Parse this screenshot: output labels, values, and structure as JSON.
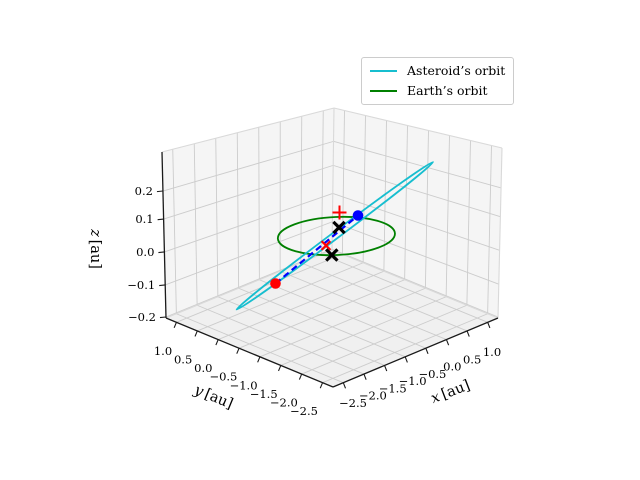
{
  "figure": {
    "background": "#ffffff"
  },
  "chart_data": {
    "type": "line",
    "projection": "3d",
    "title": "",
    "legend": {
      "position": "upper right",
      "entries": [
        {
          "label": "Asteroid’s orbit",
          "color": "#17becf",
          "style": "solid"
        },
        {
          "label": "Earth’s orbit",
          "color": "#008000",
          "style": "solid"
        }
      ]
    },
    "axes": {
      "x": {
        "var": "x",
        "unit": "[au]",
        "ticks": [
          "−2.5",
          "−2.0",
          "−1.5",
          "−1.0",
          "−0.5",
          "0.0",
          "0.5",
          "1.0"
        ],
        "range_au": [
          -2.75,
          1.25
        ]
      },
      "y": {
        "var": "y",
        "unit": "[au]",
        "ticks": [
          "1.0",
          "0.5",
          "0.0",
          "−0.5",
          "−1.0",
          "−1.5",
          "−2.0",
          "−2.5"
        ],
        "range_au": [
          1.25,
          -2.75
        ]
      },
      "z": {
        "var": "z",
        "unit": "[au]",
        "ticks": [
          "0.2",
          "0.1",
          "0.0",
          "−0.1",
          "−0.2"
        ],
        "range_au": [
          -0.2,
          0.2
        ]
      }
    },
    "series": [
      {
        "name": "Asteroid’s orbit",
        "color": "#17becf",
        "style": "solid",
        "description": "highly elongated inclined ellipse seen nearly edge-on, spanning about x = −2.4 to 1.1 au, z = −0.2 to 0.3 au"
      },
      {
        "name": "Earth’s orbit",
        "color": "#008000",
        "style": "solid",
        "description": "circle of radius about 1 au in the ecliptic plane (z = 0)"
      },
      {
        "name": "connecting segment",
        "color": "#0000ff",
        "style": "dashed",
        "description": "dashed segment along the asteroid orbit between the red and blue points"
      }
    ],
    "markers": [
      {
        "shape": "circle",
        "color": "#ff0000"
      },
      {
        "shape": "circle",
        "color": "#0000ff"
      },
      {
        "shape": "plus",
        "color": "#ff0000"
      },
      {
        "shape": "x",
        "color": "#000000"
      },
      {
        "shape": "x",
        "color": "#ff0000"
      },
      {
        "shape": "x",
        "color": "#000000"
      }
    ]
  },
  "colors": {
    "pane_wall": "#f5f5f5",
    "pane_floor": "#f0f0f0",
    "grid": "#cccccc",
    "pane_edge": "#d9d9d9",
    "axis": "#1a1a1a",
    "text": "#000000",
    "legend_border": "#cccccc"
  }
}
